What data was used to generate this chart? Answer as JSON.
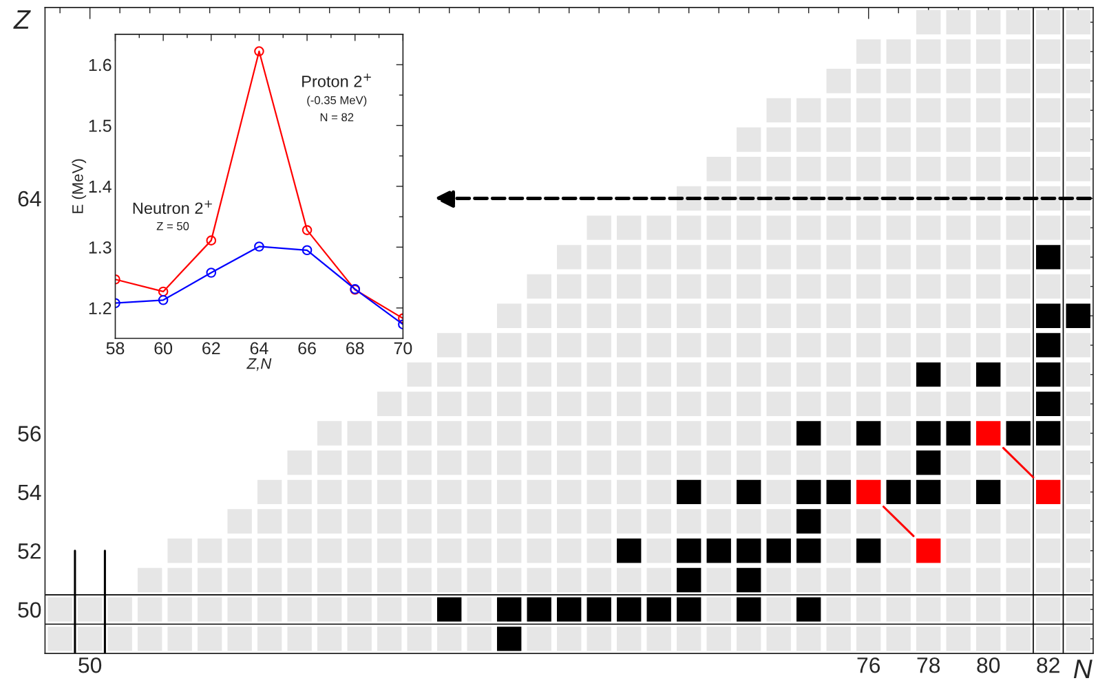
{
  "chart_data": [
    {
      "type": "scatter",
      "xlabel": "N",
      "ylabel": "Z",
      "xlim": [
        48.5,
        83.5
      ],
      "ylim": [
        48.5,
        70.5
      ],
      "marker": "square",
      "xticks": [
        {
          "value": 49,
          "label": null
        },
        50,
        {
          "value": 51,
          "label": null
        },
        {
          "value": 52,
          "label": null
        },
        {
          "value": 53,
          "label": null
        },
        {
          "value": 54,
          "label": null
        },
        {
          "value": 55,
          "label": null
        },
        {
          "value": 56,
          "label": null
        },
        {
          "value": 57,
          "label": null
        },
        {
          "value": 58,
          "label": null
        },
        {
          "value": 59,
          "label": null
        },
        {
          "value": 60,
          "label": null
        },
        {
          "value": 61,
          "label": null
        },
        {
          "value": 62,
          "label": null
        },
        {
          "value": 63,
          "label": null
        },
        {
          "value": 64,
          "label": null
        },
        {
          "value": 65,
          "label": null
        },
        {
          "value": 66,
          "label": null
        },
        {
          "value": 67,
          "label": null
        },
        {
          "value": 68,
          "label": null
        },
        {
          "value": 69,
          "label": null
        },
        {
          "value": 70,
          "label": null
        },
        {
          "value": 71,
          "label": null
        },
        {
          "value": 72,
          "label": null
        },
        {
          "value": 73,
          "label": null
        },
        {
          "value": 74,
          "label": null
        },
        {
          "value": 75,
          "label": null
        },
        76,
        {
          "value": 77,
          "label": null
        },
        78,
        {
          "value": 79,
          "label": null
        },
        80,
        {
          "value": 81,
          "label": null
        },
        82,
        {
          "value": 83,
          "label": null
        }
      ],
      "yticks": [
        {
          "value": 49,
          "label": null
        },
        50,
        {
          "value": 51,
          "label": null
        },
        52,
        {
          "value": 53,
          "label": null
        },
        54,
        {
          "value": 55,
          "label": null
        },
        56,
        {
          "value": 57,
          "label": null
        },
        {
          "value": 58,
          "label": null
        },
        {
          "value": 59,
          "label": null
        },
        {
          "value": 60,
          "label": null
        },
        {
          "value": 61,
          "label": null
        },
        {
          "value": 62,
          "label": null
        },
        {
          "value": 63,
          "label": null
        },
        64,
        {
          "value": 65,
          "label": null
        },
        {
          "value": 66,
          "label": null
        },
        {
          "value": 67,
          "label": null
        },
        {
          "value": 68,
          "label": null
        },
        {
          "value": 69,
          "label": null
        },
        {
          "value": 70,
          "label": null
        }
      ],
      "ref_lines": [
        {
          "axis": "x",
          "value": 81.5,
          "color": "#000000"
        },
        {
          "axis": "x",
          "value": 82.5,
          "color": "#000000"
        },
        {
          "axis": "y",
          "value": 49.5,
          "color": "#000000"
        },
        {
          "axis": "y",
          "value": 50.5,
          "color": "#000000"
        }
      ],
      "series": [
        {
          "type": "line",
          "color": "#ff0000",
          "marker": "none",
          "x": [
            76.5,
            77.5
          ],
          "values": [
            53.5,
            52.5
          ]
        },
        {
          "type": "line",
          "color": "#ff0000",
          "marker": "none",
          "x": [
            80.5,
            81.5
          ],
          "values": [
            55.5,
            54.5
          ]
        },
        {
          "type": "line",
          "color": "#000000",
          "marker": "none",
          "x": [
            49.5,
            49.5
          ],
          "values": [
            48.5,
            52
          ]
        },
        {
          "type": "line",
          "color": "#000000",
          "marker": "none",
          "x": [
            50.5,
            50.5
          ],
          "values": [
            48.5,
            52
          ]
        },
        {
          "color": "#e6e6e6",
          "x": [
            78,
            79,
            80,
            81,
            82,
            83
          ],
          "values": [
            70,
            70,
            70,
            70,
            70,
            70
          ]
        },
        {
          "color": "#e6e6e6",
          "x": [
            76,
            77,
            78,
            79,
            80,
            81,
            82,
            83
          ],
          "values": [
            69,
            69,
            69,
            69,
            69,
            69,
            69,
            69
          ]
        },
        {
          "color": "#e6e6e6",
          "x": [
            75,
            76,
            77,
            78,
            79,
            80,
            81,
            82,
            83
          ],
          "values": [
            68,
            68,
            68,
            68,
            68,
            68,
            68,
            68,
            68
          ]
        },
        {
          "color": "#e6e6e6",
          "x": [
            73,
            74,
            75,
            76,
            77,
            78,
            79,
            80,
            81,
            82,
            83
          ],
          "values": [
            67,
            67,
            67,
            67,
            67,
            67,
            67,
            67,
            67,
            67,
            67
          ]
        },
        {
          "color": "#e6e6e6",
          "x": [
            72,
            73,
            74,
            75,
            76,
            77,
            78,
            79,
            80,
            81,
            82,
            83
          ],
          "values": [
            66,
            66,
            66,
            66,
            66,
            66,
            66,
            66,
            66,
            66,
            66,
            66
          ]
        },
        {
          "color": "#e6e6e6",
          "x": [
            71,
            72,
            73,
            74,
            75,
            76,
            77,
            78,
            79,
            80,
            81,
            82,
            83
          ],
          "values": [
            65,
            65,
            65,
            65,
            65,
            65,
            65,
            65,
            65,
            65,
            65,
            65,
            65
          ]
        },
        {
          "color": "#e6e6e6",
          "x": [
            70,
            71,
            72,
            73,
            74,
            75,
            76,
            77,
            78,
            79,
            80,
            81,
            82,
            83
          ],
          "values": [
            64,
            64,
            64,
            64,
            64,
            64,
            64,
            64,
            64,
            64,
            64,
            64,
            64,
            64
          ]
        },
        {
          "color": "#e6e6e6",
          "x": [
            67,
            68,
            69,
            70,
            71,
            72,
            73,
            74,
            75,
            76,
            77,
            78,
            79,
            80,
            81,
            82,
            83
          ],
          "values": [
            63,
            63,
            63,
            63,
            63,
            63,
            63,
            63,
            63,
            63,
            63,
            63,
            63,
            63,
            63,
            63,
            63
          ]
        },
        {
          "color": "#e6e6e6",
          "x": [
            66,
            67,
            68,
            69,
            70,
            71,
            72,
            73,
            74,
            75,
            76,
            77,
            78,
            79,
            80,
            81,
            83
          ],
          "values": [
            62,
            62,
            62,
            62,
            62,
            62,
            62,
            62,
            62,
            62,
            62,
            62,
            62,
            62,
            62,
            62,
            62
          ]
        },
        {
          "color": "#e6e6e6",
          "x": [
            65,
            66,
            67,
            68,
            69,
            70,
            71,
            72,
            73,
            74,
            75,
            76,
            77,
            78,
            79,
            80,
            81,
            82,
            83
          ],
          "values": [
            61,
            61,
            61,
            61,
            61,
            61,
            61,
            61,
            61,
            61,
            61,
            61,
            61,
            61,
            61,
            61,
            61,
            61,
            61
          ]
        },
        {
          "color": "#e6e6e6",
          "x": [
            64,
            65,
            66,
            67,
            68,
            69,
            70,
            71,
            72,
            73,
            74,
            75,
            76,
            77,
            78,
            79,
            80,
            81
          ],
          "values": [
            60,
            60,
            60,
            60,
            60,
            60,
            60,
            60,
            60,
            60,
            60,
            60,
            60,
            60,
            60,
            60,
            60,
            60
          ]
        },
        {
          "color": "#e6e6e6",
          "x": [
            62,
            63,
            64,
            65,
            66,
            67,
            68,
            69,
            70,
            71,
            72,
            73,
            74,
            75,
            76,
            77,
            78,
            79,
            80,
            81,
            83
          ],
          "values": [
            59,
            59,
            59,
            59,
            59,
            59,
            59,
            59,
            59,
            59,
            59,
            59,
            59,
            59,
            59,
            59,
            59,
            59,
            59,
            59,
            59
          ]
        },
        {
          "color": "#e6e6e6",
          "x": [
            61,
            62,
            63,
            64,
            65,
            66,
            67,
            68,
            69,
            70,
            71,
            72,
            73,
            74,
            75,
            76,
            77,
            79,
            81,
            83
          ],
          "values": [
            58,
            58,
            58,
            58,
            58,
            58,
            58,
            58,
            58,
            58,
            58,
            58,
            58,
            58,
            58,
            58,
            58,
            58,
            58,
            58
          ]
        },
        {
          "color": "#e6e6e6",
          "x": [
            60,
            61,
            62,
            63,
            64,
            65,
            66,
            67,
            68,
            69,
            70,
            71,
            72,
            73,
            74,
            75,
            76,
            77,
            78,
            79,
            80,
            81,
            83
          ],
          "values": [
            57,
            57,
            57,
            57,
            57,
            57,
            57,
            57,
            57,
            57,
            57,
            57,
            57,
            57,
            57,
            57,
            57,
            57,
            57,
            57,
            57,
            57,
            57
          ]
        },
        {
          "color": "#e6e6e6",
          "x": [
            58,
            59,
            60,
            61,
            62,
            63,
            64,
            65,
            66,
            67,
            68,
            69,
            70,
            71,
            72,
            73,
            75,
            77,
            83
          ],
          "values": [
            56,
            56,
            56,
            56,
            56,
            56,
            56,
            56,
            56,
            56,
            56,
            56,
            56,
            56,
            56,
            56,
            56,
            56,
            56
          ]
        },
        {
          "color": "#e6e6e6",
          "x": [
            57,
            58,
            59,
            60,
            61,
            62,
            63,
            64,
            65,
            66,
            67,
            68,
            69,
            70,
            71,
            72,
            73,
            74,
            75,
            76,
            77,
            79,
            80,
            81,
            82,
            83
          ],
          "values": [
            55,
            55,
            55,
            55,
            55,
            55,
            55,
            55,
            55,
            55,
            55,
            55,
            55,
            55,
            55,
            55,
            55,
            55,
            55,
            55,
            55,
            55,
            55,
            55,
            55,
            55
          ]
        },
        {
          "color": "#e6e6e6",
          "x": [
            56,
            57,
            58,
            59,
            60,
            61,
            62,
            63,
            64,
            65,
            66,
            67,
            68,
            69,
            71,
            73,
            79,
            81,
            83
          ],
          "values": [
            54,
            54,
            54,
            54,
            54,
            54,
            54,
            54,
            54,
            54,
            54,
            54,
            54,
            54,
            54,
            54,
            54,
            54,
            54
          ]
        },
        {
          "color": "#e6e6e6",
          "x": [
            55,
            56,
            57,
            58,
            59,
            60,
            61,
            62,
            63,
            64,
            65,
            66,
            67,
            68,
            69,
            70,
            71,
            72,
            73,
            75,
            76,
            77,
            78,
            79,
            80,
            81,
            82,
            83
          ],
          "values": [
            53,
            53,
            53,
            53,
            53,
            53,
            53,
            53,
            53,
            53,
            53,
            53,
            53,
            53,
            53,
            53,
            53,
            53,
            53,
            53,
            53,
            53,
            53,
            53,
            53,
            53,
            53,
            53
          ]
        },
        {
          "color": "#e6e6e6",
          "x": [
            53,
            54,
            55,
            56,
            57,
            58,
            59,
            60,
            61,
            62,
            63,
            64,
            65,
            66,
            67,
            69,
            75,
            77,
            79,
            80,
            81,
            82,
            83
          ],
          "values": [
            52,
            52,
            52,
            52,
            52,
            52,
            52,
            52,
            52,
            52,
            52,
            52,
            52,
            52,
            52,
            52,
            52,
            52,
            52,
            52,
            52,
            52,
            52
          ]
        },
        {
          "color": "#e6e6e6",
          "x": [
            52,
            53,
            54,
            55,
            56,
            57,
            58,
            59,
            60,
            61,
            62,
            63,
            64,
            65,
            66,
            67,
            68,
            69,
            71,
            73,
            74,
            75,
            76,
            77,
            78,
            79,
            80,
            81,
            82,
            83
          ],
          "values": [
            51,
            51,
            51,
            51,
            51,
            51,
            51,
            51,
            51,
            51,
            51,
            51,
            51,
            51,
            51,
            51,
            51,
            51,
            51,
            51,
            51,
            51,
            51,
            51,
            51,
            51,
            51,
            51,
            51,
            51
          ]
        },
        {
          "color": "#e6e6e6",
          "x": [
            49,
            50,
            51,
            52,
            53,
            54,
            55,
            56,
            57,
            58,
            59,
            60,
            61,
            63,
            71,
            73,
            75,
            76,
            77,
            78,
            79,
            80,
            81,
            82,
            83
          ],
          "values": [
            50,
            50,
            50,
            50,
            50,
            50,
            50,
            50,
            50,
            50,
            50,
            50,
            50,
            50,
            50,
            50,
            50,
            50,
            50,
            50,
            50,
            50,
            50,
            50,
            50
          ]
        },
        {
          "color": "#e6e6e6",
          "x": [
            49,
            50,
            51,
            52,
            53,
            54,
            55,
            56,
            57,
            58,
            59,
            60,
            61,
            62,
            63,
            65,
            66,
            67,
            68,
            69,
            70,
            71,
            72,
            73,
            74,
            75,
            76,
            77,
            78,
            79,
            80,
            81,
            82,
            83
          ],
          "values": [
            49,
            49,
            49,
            49,
            49,
            49,
            49,
            49,
            49,
            49,
            49,
            49,
            49,
            49,
            49,
            49,
            49,
            49,
            49,
            49,
            49,
            49,
            49,
            49,
            49,
            49,
            49,
            49,
            49,
            49,
            49,
            49,
            49,
            49
          ]
        },
        {
          "color": "#000000",
          "x": [
            82,
            82,
            83,
            82,
            78,
            80,
            82,
            82,
            74,
            76,
            78,
            79,
            81,
            82,
            78,
            70,
            72,
            74,
            75,
            77,
            78,
            80,
            74,
            68,
            70,
            71,
            72,
            73,
            74,
            76,
            70,
            72,
            62,
            64,
            65,
            66,
            67,
            68,
            69,
            70,
            72,
            74,
            64
          ],
          "values": [
            62,
            60,
            60,
            59,
            58,
            58,
            58,
            57,
            56,
            56,
            56,
            56,
            56,
            56,
            55,
            54,
            54,
            54,
            54,
            54,
            54,
            54,
            53,
            52,
            52,
            52,
            52,
            52,
            52,
            52,
            51,
            51,
            50,
            50,
            50,
            50,
            50,
            50,
            50,
            50,
            50,
            50,
            49
          ]
        },
        {
          "color": "#ff0000",
          "x": [
            76,
            78,
            80,
            82
          ],
          "values": [
            54,
            52,
            56,
            54
          ]
        },
        {
          "type": "line",
          "color": "#000000",
          "marker": "none",
          "line_style": "dashed",
          "x": [
            83.4,
            61.5
          ],
          "values": [
            64,
            64
          ]
        }
      ]
    },
    {
      "type": "line",
      "xlabel": "Z,N",
      "ylabel": "E (MeV)",
      "xlim": [
        58,
        70
      ],
      "ylim": [
        1.15,
        1.65
      ],
      "marker": "circle",
      "xticks": [
        58,
        {
          "value": 59,
          "label": null
        },
        60,
        {
          "value": 61,
          "label": null
        },
        62,
        {
          "value": 63,
          "label": null
        },
        64,
        {
          "value": 65,
          "label": null
        },
        66,
        {
          "value": 67,
          "label": null
        },
        68,
        {
          "value": 69,
          "label": null
        },
        70
      ],
      "yticks": [
        1.2,
        {
          "value": 1.25,
          "label": null
        },
        1.3,
        {
          "value": 1.35,
          "label": null
        },
        1.4,
        {
          "value": 1.45,
          "label": null
        },
        1.5,
        {
          "value": 1.55,
          "label": null
        },
        1.6
      ],
      "x": [
        58,
        60,
        62,
        64,
        66,
        68,
        70
      ],
      "series": [
        {
          "color": "#ff0000",
          "values": [
            1.247,
            1.227,
            1.311,
            1.622,
            1.328,
            1.23,
            1.183
          ]
        },
        {
          "color": "#0000ff",
          "values": [
            1.208,
            1.213,
            1.258,
            1.301,
            1.295,
            1.231,
            1.173
          ]
        }
      ],
      "annotations": [
        "Proton 2$^{+}$",
        "(-0.35 MeV)",
        "N = 82",
        "Neutron 2$^{+}$",
        "Z = 50"
      ]
    }
  ]
}
